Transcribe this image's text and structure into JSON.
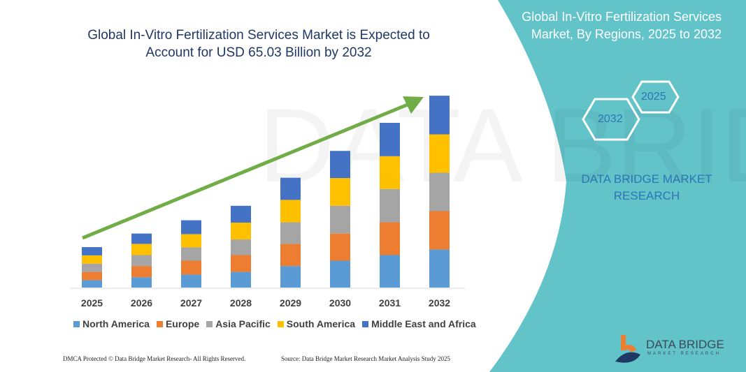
{
  "title": "Global In-Vitro Fertilization Services Market is Expected to Account for USD 65.03 Billion by 2032",
  "side_title": "Global In-Vitro Fertilization Services Market, By Regions, 2025 to 2032",
  "hex_labels": [
    "2025",
    "2032"
  ],
  "brand_text": "DATA BRIDGE MARKET RESEARCH",
  "logo": {
    "name": "DATA BRIDGE",
    "sub": "MARKET RESEARCH"
  },
  "footer": {
    "left": "DMCA Protected © Data Bridge Market Research- All Rights Reserved.",
    "right": "Source: Data Bridge Market Research Market Analysis Study 2025"
  },
  "colors": {
    "panel": "#62c3c9",
    "arrow": "#70ad47"
  },
  "chart_data": {
    "type": "bar",
    "stacked": true,
    "grid": false,
    "legend": "bottom",
    "categories": [
      "2025",
      "2026",
      "2027",
      "2028",
      "2029",
      "2030",
      "2031",
      "2032"
    ],
    "unit": "USD Billion (estimated)",
    "series": [
      {
        "name": "North America",
        "color": "#5b9bd5",
        "values": [
          2.5,
          3.5,
          4.4,
          5.3,
          7.3,
          9.1,
          11.0,
          12.9
        ]
      },
      {
        "name": "Europe",
        "color": "#ed7d31",
        "values": [
          2.8,
          3.8,
          4.7,
          5.7,
          7.5,
          9.2,
          11.1,
          13.0
        ]
      },
      {
        "name": "Asia Pacific",
        "color": "#a5a5a5",
        "values": [
          2.8,
          3.7,
          4.5,
          5.3,
          7.3,
          9.4,
          11.3,
          13.0
        ]
      },
      {
        "name": "South America",
        "color": "#ffc000",
        "values": [
          2.8,
          3.8,
          4.5,
          5.7,
          7.6,
          9.4,
          11.1,
          13.0
        ]
      },
      {
        "name": "Middle East and Africa",
        "color": "#4472c4",
        "values": [
          2.8,
          3.5,
          4.7,
          5.7,
          7.5,
          9.2,
          11.3,
          13.1
        ]
      }
    ]
  }
}
